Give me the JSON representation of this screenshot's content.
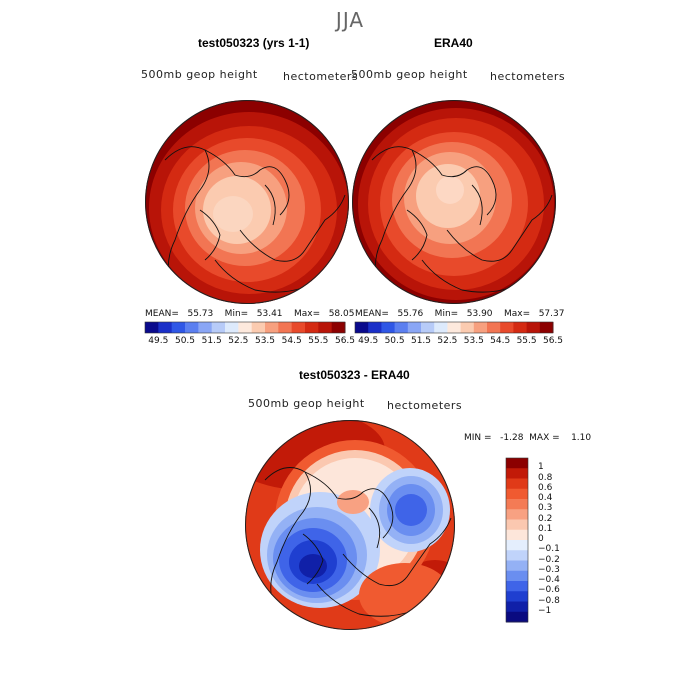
{
  "figure_title": "JJA",
  "panels": [
    {
      "title": "test050323 (yrs 1-1)",
      "subtitle_left": "500mb  geop  height",
      "subtitle_right": "hectometers",
      "stats": "MEAN=   55.73    Min=   53.41    Max=   58.05",
      "center_color": "#fbd6c0"
    },
    {
      "title": "ERA40",
      "subtitle_left": "500mb  geop  height",
      "subtitle_right": "hectometers",
      "stats": "MEAN=   55.76    Min=   53.90    Max=   57.37",
      "center_color": "#fdd8c4"
    },
    {
      "title": "test050323 - ERA40",
      "subtitle_left": "500mb  geop  height",
      "subtitle_right": "hectometers",
      "stats": "MIN =   -1.28  MAX =    1.10"
    }
  ],
  "colorbar_top": {
    "labels": [
      "49.5",
      "50.5",
      "51.5",
      "52.5",
      "53.5",
      "54.5",
      "55.5",
      "56.5"
    ],
    "colors": [
      "#0a0a8c",
      "#1a2fc8",
      "#2f57e6",
      "#5b7ff0",
      "#8aa6f5",
      "#b7cbf8",
      "#ddeafc",
      "#fde9dd",
      "#fbcbb0",
      "#f7a07f",
      "#f27553",
      "#e84a2b",
      "#d42a12",
      "#b81408",
      "#8c0000"
    ]
  },
  "colorbar_diff": {
    "labels": [
      "1",
      "0.8",
      "0.6",
      "0.4",
      "0.3",
      "0.2",
      "0.1",
      "0",
      "−0.1",
      "−0.2",
      "−0.3",
      "−0.4",
      "−0.6",
      "−0.8",
      "−1"
    ],
    "colors": [
      "#8c0000",
      "#c21a08",
      "#e03a18",
      "#f05a30",
      "#f47b55",
      "#f8a182",
      "#fbc8b0",
      "#fde6da",
      "#e4eefd",
      "#c0d3fa",
      "#94b1f5",
      "#6a8ef0",
      "#3f64e8",
      "#1f3fd0",
      "#1020a8",
      "#0a0a80"
    ]
  }
}
